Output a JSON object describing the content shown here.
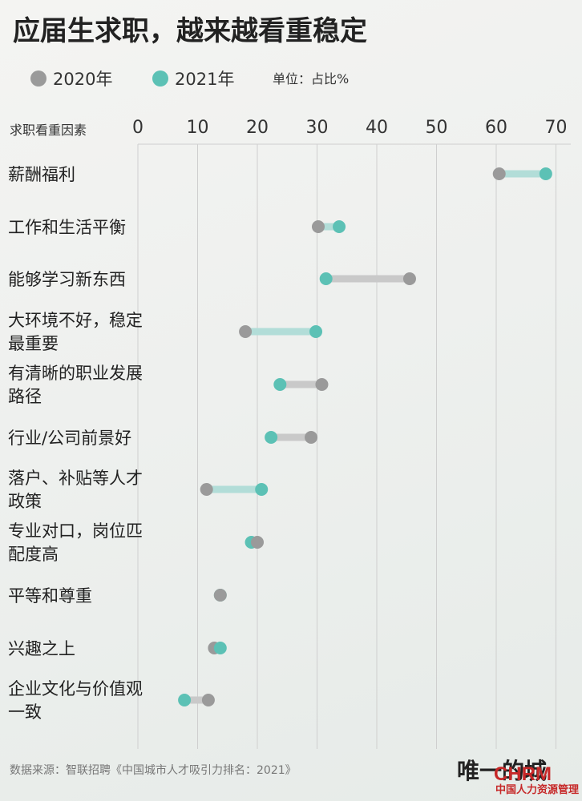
{
  "header": {
    "title": "应届生求职，越来越看重稳定",
    "unit": "单位：占比%"
  },
  "legend": [
    {
      "name": "2020年",
      "color": "#9a9a9a"
    },
    {
      "name": "2021年",
      "color": "#5cc1b5"
    }
  ],
  "colors": {
    "gray_dot": "#9a9a9a",
    "teal_dot": "#5cc1b5",
    "gray_bar": "#c9c9c9",
    "teal_bar": "#b2ddd8",
    "grid": "#cfcfcf"
  },
  "chart_data": {
    "type": "dumbbell",
    "category_axis_label": "求职看重因素",
    "xlim": [
      0,
      72
    ],
    "ticks": [
      0,
      10,
      20,
      30,
      40,
      50,
      60,
      70
    ],
    "grid": true,
    "legend_placement": "top-left",
    "categories": [
      [
        "薪酬福利"
      ],
      [
        "工作和生活平衡"
      ],
      [
        "能够学习新东西"
      ],
      [
        "大环境不好，稳定",
        "最重要"
      ],
      [
        "有清晰的职业发展",
        "路径"
      ],
      [
        "行业/公司前景好"
      ],
      [
        "落户、补贴等人才",
        "政策"
      ],
      [
        "专业对口，岗位匹",
        "配度高"
      ],
      [
        "平等和尊重"
      ],
      [
        "兴趣之上"
      ],
      [
        "企业文化与价值观",
        "一致"
      ]
    ],
    "series": [
      {
        "name": "2020年",
        "values": [
          60.5,
          30.2,
          45.5,
          18.0,
          30.8,
          29.0,
          11.5,
          20.0,
          13.8,
          12.8,
          11.8
        ]
      },
      {
        "name": "2021年",
        "values": [
          68.3,
          33.7,
          31.5,
          29.8,
          23.8,
          22.3,
          20.7,
          19.0,
          13.8,
          13.8,
          7.8
        ]
      }
    ]
  },
  "footer": {
    "source": "数据来源：智联招聘《中国城市人才吸引力排名：2021》",
    "brand": "唯一的城",
    "brand_overlay": "CHRM",
    "brand_sub": "中国人力资源管理"
  }
}
